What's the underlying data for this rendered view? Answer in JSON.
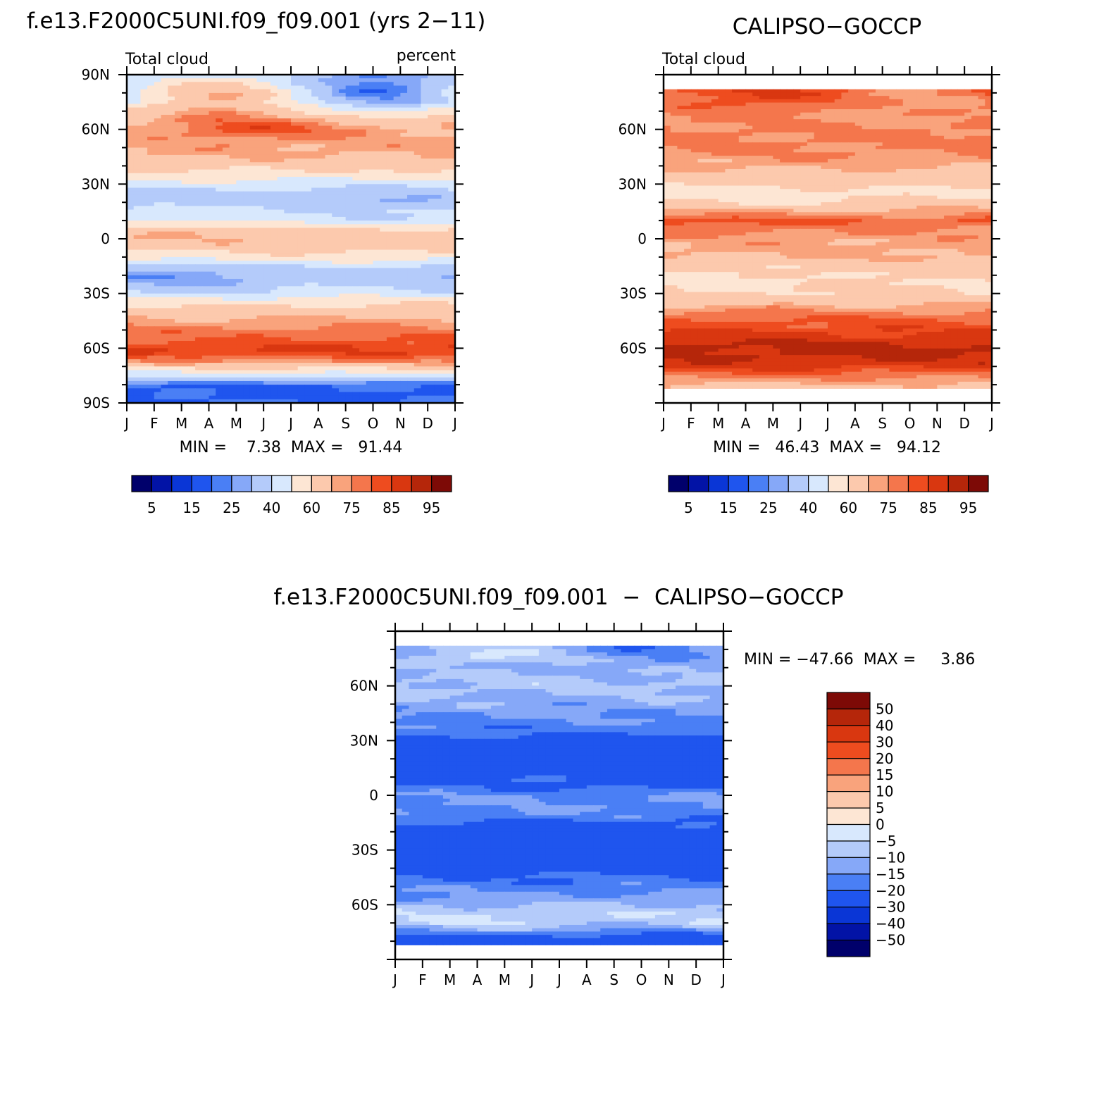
{
  "palette": {
    "abs": [
      "#00006b",
      "#0213a6",
      "#0a36d6",
      "#1f55ee",
      "#4a7ff5",
      "#86a8f8",
      "#b4cbfa",
      "#d8e8fd",
      "#fde6d4",
      "#fcc9ad",
      "#f9a37c",
      "#f4764c",
      "#ee4c1f",
      "#d93710",
      "#b5260a",
      "#7d0a06"
    ],
    "diff": [
      "#00006b",
      "#0213a6",
      "#0a36d6",
      "#1f55ee",
      "#4a7ff5",
      "#86a8f8",
      "#b4cbfa",
      "#d8e8fd",
      "#fde6d4",
      "#fcc9ad",
      "#f9a37c",
      "#f4764c",
      "#ee4c1f",
      "#d93710",
      "#b5260a",
      "#7d0a06"
    ],
    "frame": "#000000"
  },
  "chart_data": [
    {
      "id": "model",
      "type": "heatmap",
      "title": "f.e13.F2000C5UNI.f09_f09.001 (yrs 2−11)",
      "left_label": "Total cloud",
      "right_label": "percent",
      "x_ticks": [
        "J",
        "F",
        "M",
        "A",
        "M",
        "J",
        "J",
        "A",
        "S",
        "O",
        "N",
        "D",
        "J"
      ],
      "y_ticks": [
        "90N",
        "60N",
        "30N",
        "0",
        "30S",
        "60S",
        "90S"
      ],
      "y_tick_values": [
        90,
        60,
        30,
        0,
        -30,
        -60,
        -90
      ],
      "ylim": [
        -90,
        90
      ],
      "data_lat_range": [
        -90,
        90
      ],
      "stats": "MIN =    7.38  MAX =   91.44",
      "colorbar_labels": [
        "5",
        "15",
        "25",
        "40",
        "60",
        "75",
        "85",
        "95"
      ],
      "levels": [
        5,
        10,
        15,
        20,
        25,
        30,
        40,
        50,
        60,
        70,
        75,
        80,
        85,
        90,
        95
      ],
      "months": [
        "J",
        "F",
        "M",
        "A",
        "M",
        "J",
        "J",
        "A",
        "S",
        "O",
        "N",
        "D"
      ],
      "lat_profile": [
        [
          -90,
          20
        ],
        [
          -85,
          18
        ],
        [
          -80,
          20
        ],
        [
          -76,
          40
        ],
        [
          -72,
          56
        ],
        [
          -68,
          72
        ],
        [
          -63,
          84
        ],
        [
          -60,
          86
        ],
        [
          -55,
          80
        ],
        [
          -50,
          76
        ],
        [
          -45,
          72
        ],
        [
          -40,
          66
        ],
        [
          -35,
          58
        ],
        [
          -30,
          44
        ],
        [
          -25,
          36
        ],
        [
          -20,
          32
        ],
        [
          -15,
          40
        ],
        [
          -10,
          56
        ],
        [
          -5,
          64
        ],
        [
          0,
          66
        ],
        [
          5,
          60
        ],
        [
          10,
          44
        ],
        [
          15,
          40
        ],
        [
          20,
          30
        ],
        [
          25,
          34
        ],
        [
          30,
          44
        ],
        [
          35,
          56
        ],
        [
          40,
          64
        ],
        [
          45,
          70
        ],
        [
          50,
          72
        ],
        [
          55,
          72
        ],
        [
          60,
          74
        ],
        [
          65,
          66
        ],
        [
          70,
          54
        ],
        [
          75,
          38
        ],
        [
          80,
          34
        ],
        [
          85,
          32
        ],
        [
          90,
          30
        ]
      ],
      "seasonal": [
        {
          "lat": 20,
          "width": 10,
          "amp": 8,
          "phase": 1.5
        },
        {
          "lat": -22,
          "width": 9,
          "amp": -10,
          "phase": 1.2
        },
        {
          "lat": 5,
          "width": 7,
          "amp": 9,
          "phase": 1.4
        },
        {
          "lat": 80,
          "width": 12,
          "amp": 48,
          "phase": 1.7
        },
        {
          "lat": 62,
          "width": 8,
          "amp": 10,
          "phase": 2.8
        }
      ],
      "show_ylim_gap": false
    },
    {
      "id": "obs",
      "type": "heatmap",
      "title": "CALIPSO−GOCCP",
      "left_label": "Total cloud",
      "right_label": "",
      "x_ticks": [
        "J",
        "F",
        "M",
        "A",
        "M",
        "J",
        "J",
        "A",
        "S",
        "O",
        "N",
        "D",
        "J"
      ],
      "y_ticks": [
        "60N",
        "30N",
        "0",
        "30S",
        "60S"
      ],
      "y_tick_values": [
        60,
        30,
        0,
        -30,
        -60
      ],
      "ylim": [
        -90,
        90
      ],
      "data_lat_range": [
        -82,
        82
      ],
      "stats": "MIN =   46.43  MAX =   94.12",
      "colorbar_labels": [
        "5",
        "15",
        "25",
        "40",
        "60",
        "75",
        "85",
        "95"
      ],
      "levels": [
        5,
        10,
        15,
        20,
        25,
        30,
        40,
        50,
        60,
        70,
        75,
        80,
        85,
        90,
        95
      ],
      "months": [
        "J",
        "F",
        "M",
        "A",
        "M",
        "J",
        "J",
        "A",
        "S",
        "O",
        "N",
        "D"
      ],
      "lat_profile": [
        [
          -82,
          66
        ],
        [
          -78,
          72
        ],
        [
          -74,
          80
        ],
        [
          -70,
          86
        ],
        [
          -65,
          90
        ],
        [
          -60,
          92
        ],
        [
          -55,
          88
        ],
        [
          -50,
          84
        ],
        [
          -45,
          80
        ],
        [
          -40,
          76
        ],
        [
          -35,
          68
        ],
        [
          -30,
          62
        ],
        [
          -25,
          60
        ],
        [
          -20,
          61
        ],
        [
          -15,
          64
        ],
        [
          -10,
          70
        ],
        [
          -5,
          72
        ],
        [
          0,
          72
        ],
        [
          5,
          76
        ],
        [
          10,
          80
        ],
        [
          15,
          72
        ],
        [
          20,
          62
        ],
        [
          25,
          58
        ],
        [
          30,
          62
        ],
        [
          35,
          66
        ],
        [
          40,
          72
        ],
        [
          45,
          74
        ],
        [
          50,
          76
        ],
        [
          55,
          76
        ],
        [
          60,
          76
        ],
        [
          65,
          74
        ],
        [
          70,
          74
        ],
        [
          75,
          76
        ],
        [
          80,
          78
        ],
        [
          82,
          78
        ]
      ],
      "seasonal": [
        {
          "lat": 20,
          "width": 8,
          "amp": -6,
          "phase": 2.0
        },
        {
          "lat": 78,
          "width": 10,
          "amp": 10,
          "phase": 1.8
        },
        {
          "lat": -22,
          "width": 10,
          "amp": -4,
          "phase": 1.4
        },
        {
          "lat": 10,
          "width": 6,
          "amp": 5,
          "phase": 1.4
        }
      ],
      "show_ylim_gap": true
    },
    {
      "id": "diff",
      "type": "heatmap",
      "title": "f.e13.F2000C5UNI.f09_f09.001  −  CALIPSO−GOCCP",
      "left_label": "",
      "right_label": "",
      "x_ticks": [
        "J",
        "F",
        "M",
        "A",
        "M",
        "J",
        "J",
        "A",
        "S",
        "O",
        "N",
        "D",
        "J"
      ],
      "y_ticks": [
        "60N",
        "30N",
        "0",
        "30S",
        "60S"
      ],
      "y_tick_values": [
        60,
        30,
        0,
        -30,
        -60
      ],
      "ylim": [
        -90,
        90
      ],
      "data_lat_range": [
        -82,
        82
      ],
      "stats": "MIN = −47.66  MAX =     3.86",
      "colorbar_labels": [
        "50",
        "40",
        "30",
        "20",
        "15",
        "10",
        "5",
        "0",
        "−5",
        "−10",
        "−15",
        "−20",
        "−30",
        "−40",
        "−50"
      ],
      "levels": [
        -50,
        -40,
        -30,
        -20,
        -15,
        -10,
        -5,
        0,
        5,
        10,
        15,
        20,
        30,
        40,
        50
      ],
      "months": [
        "J",
        "F",
        "M",
        "A",
        "M",
        "J",
        "J",
        "A",
        "S",
        "O",
        "N",
        "D"
      ],
      "lat_profile": [
        [
          -82,
          -26
        ],
        [
          -78,
          -24
        ],
        [
          -74,
          -14
        ],
        [
          -70,
          -8
        ],
        [
          -65,
          -6
        ],
        [
          -60,
          -10
        ],
        [
          -55,
          -14
        ],
        [
          -50,
          -17
        ],
        [
          -45,
          -20
        ],
        [
          -40,
          -24
        ],
        [
          -35,
          -24
        ],
        [
          -30,
          -25
        ],
        [
          -25,
          -26
        ],
        [
          -20,
          -25
        ],
        [
          -15,
          -21
        ],
        [
          -10,
          -16
        ],
        [
          -5,
          -15
        ],
        [
          0,
          -16
        ],
        [
          5,
          -22
        ],
        [
          10,
          -24
        ],
        [
          15,
          -25
        ],
        [
          20,
          -25
        ],
        [
          25,
          -26
        ],
        [
          30,
          -23
        ],
        [
          35,
          -19
        ],
        [
          40,
          -16
        ],
        [
          45,
          -14
        ],
        [
          50,
          -12
        ],
        [
          55,
          -10
        ],
        [
          60,
          -8
        ],
        [
          65,
          -10
        ],
        [
          70,
          -12
        ],
        [
          75,
          -12
        ],
        [
          80,
          -15
        ],
        [
          82,
          -16
        ]
      ],
      "seasonal": [
        {
          "lat": 78,
          "width": 6,
          "amp": 13,
          "phase": 1.7
        },
        {
          "lat": -72,
          "width": 6,
          "amp": 4,
          "phase": 1.5
        },
        {
          "lat": 8,
          "width": 6,
          "amp": 4,
          "phase": 1.6
        }
      ],
      "show_ylim_gap": true
    }
  ]
}
